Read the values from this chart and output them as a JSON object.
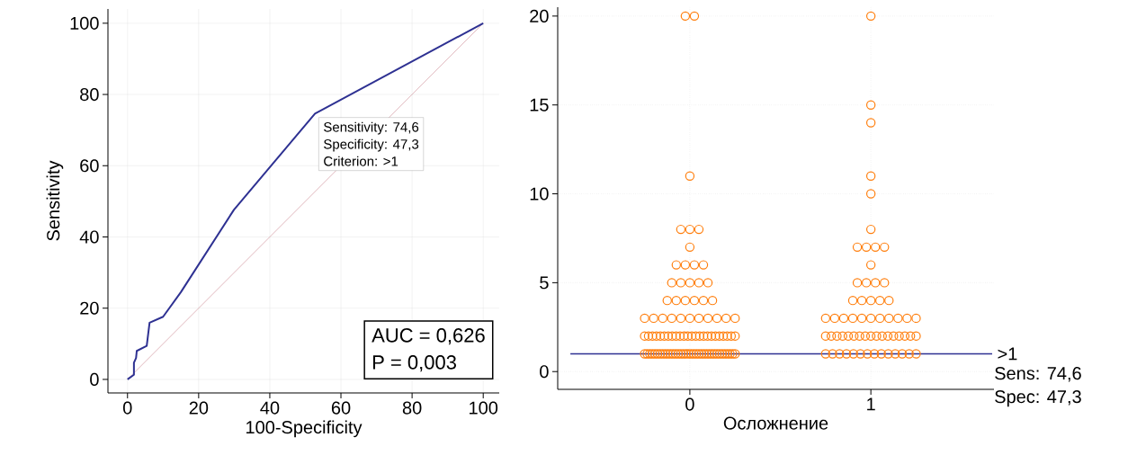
{
  "chart_data": [
    {
      "type": "line",
      "xlabel": "100-Specificity",
      "ylabel": "Sensitivity",
      "xlim": [
        -5.5,
        104.5
      ],
      "ylim": [
        -3.8,
        104
      ],
      "xticks": [
        0,
        20,
        40,
        60,
        80,
        100
      ],
      "yticks": [
        0,
        20,
        40,
        60,
        80,
        100
      ],
      "grid": true,
      "line_style": "solid",
      "series": [
        {
          "color": "#d8a4ac",
          "x": [
            0,
            100
          ],
          "values": [
            0,
            100
          ]
        },
        {
          "color": "#2e3192",
          "x": [
            0,
            1.8,
            1.8,
            2.4,
            2.6,
            5.4,
            6.2,
            10,
            15,
            29.9,
            52.7,
            100
          ],
          "values": [
            0,
            1.3,
            4.7,
            6,
            8,
            9.4,
            15.9,
            17.6,
            24.5,
            47.6,
            74.6,
            100
          ]
        }
      ],
      "annotations": [
        "AUC = 0,626",
        "P = 0,003",
        {
          "text": "Sensitivity: 74,6",
          "x": 52.7,
          "y": 74.6
        },
        "Specificity: 47,3",
        "Criterion: >1"
      ]
    },
    {
      "type": "scatter",
      "xlabel": "Осложнение",
      "categories": [
        "0",
        "1"
      ],
      "ylim": [
        -1,
        20.5
      ],
      "yticks": [
        0,
        5,
        10,
        15,
        20
      ],
      "grid": true,
      "marker": "circle",
      "series": [
        {
          "color": "#ff7f0e",
          "x": [
            "0",
            "0",
            "0",
            "0",
            "0",
            "0",
            "0",
            "0",
            "0",
            "0",
            "0",
            "0",
            "0",
            "0",
            "0",
            "0",
            "0",
            "0",
            "0",
            "0",
            "0",
            "0",
            "0",
            "0",
            "0",
            "0",
            "0",
            "0",
            "0",
            "0",
            "0",
            "0",
            "0",
            "0",
            "0",
            "0",
            "0",
            "0",
            "0",
            "0",
            "0",
            "0",
            "0",
            "0",
            "0",
            "0",
            "0",
            "0",
            "0",
            "0",
            "0",
            "0",
            "0",
            "0",
            "0",
            "0",
            "0",
            "0",
            "0",
            "0",
            "0",
            "0",
            "0",
            "0",
            "0",
            "0",
            "0",
            "0",
            "0",
            "0",
            "0",
            "0",
            "0",
            "0",
            "0",
            "0",
            "0",
            "0",
            "0",
            "0",
            "0",
            "0",
            "0",
            "0",
            "0",
            "0",
            "0",
            "0",
            "0",
            "0",
            "0",
            "0",
            "0"
          ],
          "values": [
            20,
            20,
            11,
            8,
            8,
            8,
            7,
            6,
            6,
            6,
            6,
            5,
            5,
            5,
            5,
            5,
            4,
            4,
            4,
            4,
            4,
            4,
            3,
            3,
            3,
            3,
            3,
            3,
            3,
            3,
            3,
            3,
            3,
            2,
            2,
            2,
            2,
            2,
            2,
            2,
            2,
            2,
            2,
            2,
            2,
            2,
            2,
            2,
            2,
            2,
            2,
            2,
            2,
            2,
            2,
            2,
            2,
            1,
            1,
            1,
            1,
            1,
            1,
            1,
            1,
            1,
            1,
            1,
            1,
            1,
            1,
            1,
            1,
            1,
            1,
            1,
            1,
            1,
            1,
            1,
            1,
            1,
            1,
            1,
            1,
            1,
            1,
            1,
            1,
            1,
            1,
            1,
            1
          ]
        },
        {
          "color": "#ff7f0e",
          "x": [
            "1",
            "1",
            "1",
            "1",
            "1",
            "1",
            "1",
            "1",
            "1",
            "1",
            "1",
            "1",
            "1",
            "1",
            "1",
            "1",
            "1",
            "1",
            "1",
            "1",
            "1",
            "1",
            "1",
            "1",
            "1",
            "1",
            "1",
            "1",
            "1",
            "1",
            "1",
            "1",
            "1",
            "1",
            "1",
            "1",
            "1",
            "1",
            "1",
            "1",
            "1",
            "1",
            "1",
            "1",
            "1",
            "1",
            "1",
            "1",
            "1",
            "1",
            "1",
            "1",
            "1",
            "1",
            "1",
            "1",
            "1",
            "1",
            "1",
            "1",
            "1",
            "1"
          ],
          "values": [
            20,
            15,
            14,
            11,
            10,
            8,
            7,
            7,
            7,
            7,
            6,
            5,
            5,
            5,
            5,
            4,
            4,
            4,
            4,
            4,
            3,
            3,
            3,
            3,
            3,
            3,
            3,
            3,
            3,
            3,
            3,
            2,
            2,
            2,
            2,
            2,
            2,
            2,
            2,
            2,
            2,
            2,
            2,
            2,
            2,
            2,
            2,
            2,
            1,
            1,
            1,
            1,
            1,
            1,
            1,
            1,
            1,
            1,
            1,
            1,
            1,
            1
          ]
        }
      ],
      "ref_lines": [
        {
          "axis": "y",
          "value": 1,
          "label": ">1",
          "color": "#2e3192"
        }
      ],
      "annotations": [
        "Sens: 74,6",
        "Spec: 47,3"
      ]
    }
  ]
}
